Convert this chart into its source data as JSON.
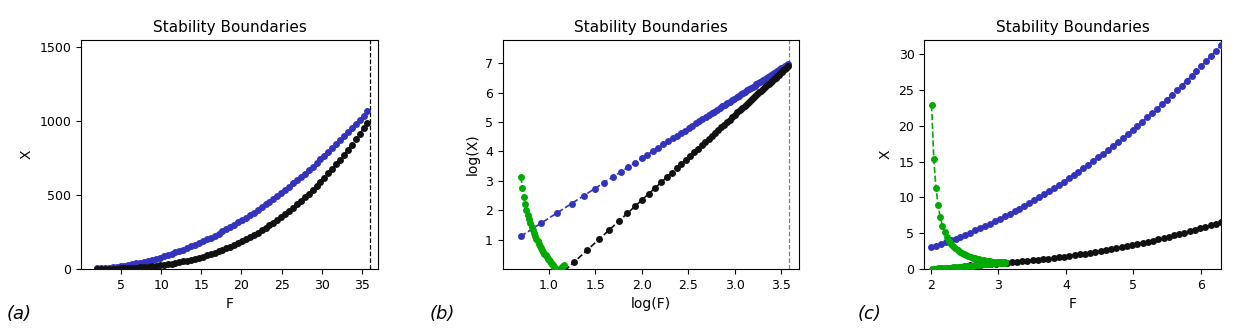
{
  "title": "Stability Boundaries",
  "subplot_labels": [
    "(a)",
    "(b)",
    "(c)"
  ],
  "panel_a": {
    "xlabel": "F",
    "ylabel": "X",
    "xlim": [
      0,
      37
    ],
    "ylim": [
      0,
      1550
    ],
    "yticks": [
      0,
      500,
      1000,
      1500
    ],
    "xticks": [
      5,
      10,
      15,
      20,
      25,
      30,
      35
    ],
    "vline": 36.0
  },
  "panel_b": {
    "xlabel": "log(F)",
    "ylabel": "log(X)",
    "xlim": [
      0.5,
      3.7
    ],
    "ylim": [
      0,
      7.8
    ],
    "yticks": [
      1,
      2,
      3,
      4,
      5,
      6,
      7
    ],
    "xticks": [
      1.0,
      1.5,
      2.0,
      2.5,
      3.0,
      3.5
    ],
    "vline": 3.584
  },
  "panel_c": {
    "xlabel": "F",
    "ylabel": "X",
    "xlim": [
      1.9,
      6.3
    ],
    "ylim": [
      0,
      32
    ],
    "yticks": [
      0,
      5,
      10,
      15,
      20,
      25,
      30
    ],
    "xticks": [
      2,
      3,
      4,
      5,
      6
    ]
  },
  "color_upper": "#3333bb",
  "color_lower": "#111111",
  "color_green": "#00aa00",
  "dot_size": 5,
  "line_width": 1.2
}
